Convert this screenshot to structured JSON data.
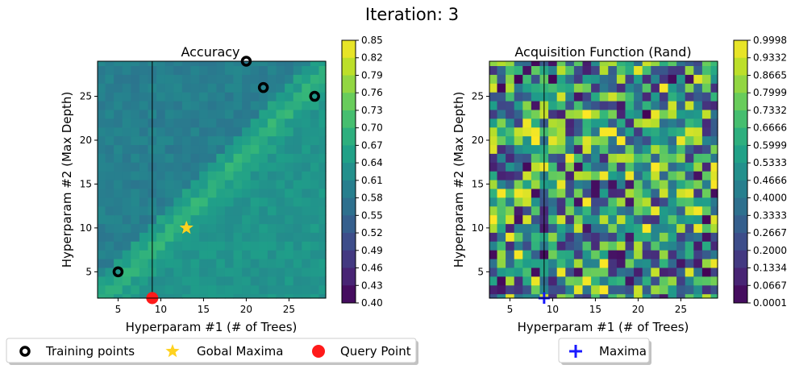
{
  "figure": {
    "suptitle": "Iteration: 3"
  },
  "colormap_viridis": [
    "#440154",
    "#482878",
    "#3e4a89",
    "#31688e",
    "#26828e",
    "#1f9e89",
    "#35b779",
    "#6ece58",
    "#b5de2b",
    "#fde725"
  ],
  "chart_data": [
    {
      "type": "heatmap",
      "title": "Accuracy",
      "xlabel": "Hyperparam #1 (# of Trees)",
      "ylabel": "Hyperparam #2 (Max Depth)",
      "xlim": [
        2.6,
        29.3
      ],
      "ylim": [
        2,
        29
      ],
      "xticks": [
        5,
        10,
        15,
        20,
        25
      ],
      "yticks": [
        5,
        10,
        15,
        20,
        25
      ],
      "colorbar_ticks": [
        "0.85",
        "0.82",
        "0.79",
        "0.76",
        "0.73",
        "0.70",
        "0.67",
        "0.64",
        "0.61",
        "0.58",
        "0.55",
        "0.52",
        "0.49",
        "0.46",
        "0.43",
        "0.40"
      ],
      "colorbar_range": [
        0.4,
        0.85
      ],
      "vline_x": 9,
      "training_points": [
        [
          5,
          5
        ],
        [
          20,
          29
        ],
        [
          22,
          26
        ],
        [
          28,
          25
        ]
      ],
      "global_maxima": [
        [
          13,
          10
        ]
      ],
      "query_point": [
        [
          9,
          2
        ]
      ],
      "seed": 7
    },
    {
      "type": "heatmap",
      "title": "Acquisition Function (Rand)",
      "xlabel": "Hyperparam #1 (# of Trees)",
      "ylabel": "Hyperparam #2 (Max Depth)",
      "xlim": [
        2.6,
        29.3
      ],
      "ylim": [
        2,
        29
      ],
      "xticks": [
        5,
        10,
        15,
        20,
        25
      ],
      "yticks": [
        5,
        10,
        15,
        20,
        25
      ],
      "colorbar_ticks": [
        "0.9998",
        "0.9332",
        "0.8665",
        "0.7999",
        "0.7332",
        "0.6666",
        "0.5999",
        "0.5333",
        "0.4666",
        "0.4000",
        "0.3333",
        "0.2667",
        "0.2000",
        "0.1334",
        "0.0667",
        "0.0001"
      ],
      "colorbar_range": [
        0.0001,
        0.9998
      ],
      "vline_x": 9,
      "maxima": [
        [
          9,
          2
        ]
      ],
      "seed": 42
    }
  ],
  "legend_left": {
    "training_label": "Training points",
    "maxima_label": "Gobal Maxima",
    "query_label": "Query Point"
  },
  "legend_right": {
    "maxima_label": "Maxima"
  }
}
